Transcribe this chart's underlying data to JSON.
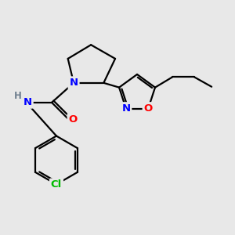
{
  "bg_color": "#e8e8e8",
  "bond_color": "#000000",
  "bond_width": 1.6,
  "atom_colors": {
    "N": "#0000ff",
    "O": "#ff0000",
    "Cl": "#00bb00",
    "H": "#708090",
    "C": "#000000"
  },
  "font_size": 9.5,
  "xlim": [
    0,
    10
  ],
  "ylim": [
    0,
    10
  ]
}
